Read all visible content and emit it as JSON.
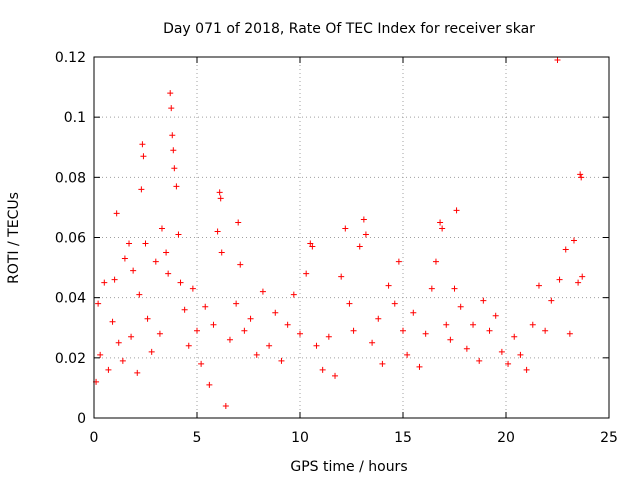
{
  "chart_data": {
    "type": "scatter",
    "title": "Day 071 of 2018, Rate Of TEC Index for receiver skar",
    "xlabel": "GPS time / hours",
    "ylabel": "ROTI / TECUs",
    "xlim": [
      0,
      25
    ],
    "ylim": [
      0,
      0.12
    ],
    "xticks": [
      0,
      5,
      10,
      15,
      20,
      25
    ],
    "xtick_labels": [
      "0",
      "5",
      "10",
      "15",
      "20",
      "25"
    ],
    "yticks": [
      0,
      0.02,
      0.04,
      0.06,
      0.08,
      0.1,
      0.12
    ],
    "ytick_labels": [
      "0",
      "0.02",
      "0.04",
      "0.06",
      "0.08",
      "0.1",
      "0.12"
    ],
    "grid": true,
    "marker": "plus",
    "series": [
      {
        "name": "ROTI",
        "color": "#ff0000",
        "points": [
          [
            0.1,
            0.012
          ],
          [
            0.2,
            0.038
          ],
          [
            0.3,
            0.021
          ],
          [
            0.5,
            0.045
          ],
          [
            0.7,
            0.016
          ],
          [
            0.9,
            0.032
          ],
          [
            1.0,
            0.046
          ],
          [
            1.1,
            0.068
          ],
          [
            1.2,
            0.025
          ],
          [
            1.4,
            0.019
          ],
          [
            1.5,
            0.053
          ],
          [
            1.7,
            0.058
          ],
          [
            1.8,
            0.027
          ],
          [
            1.9,
            0.049
          ],
          [
            2.1,
            0.015
          ],
          [
            2.2,
            0.041
          ],
          [
            2.3,
            0.076
          ],
          [
            2.35,
            0.091
          ],
          [
            2.4,
            0.087
          ],
          [
            2.5,
            0.058
          ],
          [
            2.6,
            0.033
          ],
          [
            2.8,
            0.022
          ],
          [
            3.0,
            0.052
          ],
          [
            3.2,
            0.028
          ],
          [
            3.3,
            0.063
          ],
          [
            3.5,
            0.055
          ],
          [
            3.6,
            0.048
          ],
          [
            3.7,
            0.108
          ],
          [
            3.75,
            0.103
          ],
          [
            3.8,
            0.094
          ],
          [
            3.85,
            0.089
          ],
          [
            3.9,
            0.083
          ],
          [
            4.0,
            0.077
          ],
          [
            4.1,
            0.061
          ],
          [
            4.2,
            0.045
          ],
          [
            4.4,
            0.036
          ],
          [
            4.6,
            0.024
          ],
          [
            4.8,
            0.043
          ],
          [
            5.0,
            0.029
          ],
          [
            5.2,
            0.018
          ],
          [
            5.4,
            0.037
          ],
          [
            5.6,
            0.011
          ],
          [
            5.8,
            0.031
          ],
          [
            6.0,
            0.062
          ],
          [
            6.1,
            0.075
          ],
          [
            6.15,
            0.073
          ],
          [
            6.2,
            0.055
          ],
          [
            6.4,
            0.004
          ],
          [
            6.6,
            0.026
          ],
          [
            6.9,
            0.038
          ],
          [
            7.0,
            0.065
          ],
          [
            7.1,
            0.051
          ],
          [
            7.3,
            0.029
          ],
          [
            7.6,
            0.033
          ],
          [
            7.9,
            0.021
          ],
          [
            8.2,
            0.042
          ],
          [
            8.5,
            0.024
          ],
          [
            8.8,
            0.035
          ],
          [
            9.1,
            0.019
          ],
          [
            9.4,
            0.031
          ],
          [
            9.7,
            0.041
          ],
          [
            10.0,
            0.028
          ],
          [
            10.3,
            0.048
          ],
          [
            10.5,
            0.058
          ],
          [
            10.6,
            0.057
          ],
          [
            10.8,
            0.024
          ],
          [
            11.1,
            0.016
          ],
          [
            11.4,
            0.027
          ],
          [
            11.7,
            0.014
          ],
          [
            12.0,
            0.047
          ],
          [
            12.2,
            0.063
          ],
          [
            12.4,
            0.038
          ],
          [
            12.6,
            0.029
          ],
          [
            12.9,
            0.057
          ],
          [
            13.1,
            0.066
          ],
          [
            13.2,
            0.061
          ],
          [
            13.5,
            0.025
          ],
          [
            13.8,
            0.033
          ],
          [
            14.0,
            0.018
          ],
          [
            14.3,
            0.044
          ],
          [
            14.6,
            0.038
          ],
          [
            14.8,
            0.052
          ],
          [
            15.0,
            0.029
          ],
          [
            15.2,
            0.021
          ],
          [
            15.5,
            0.035
          ],
          [
            15.8,
            0.017
          ],
          [
            16.1,
            0.028
          ],
          [
            16.4,
            0.043
          ],
          [
            16.6,
            0.052
          ],
          [
            16.8,
            0.065
          ],
          [
            16.9,
            0.063
          ],
          [
            17.1,
            0.031
          ],
          [
            17.3,
            0.026
          ],
          [
            17.5,
            0.043
          ],
          [
            17.6,
            0.069
          ],
          [
            17.8,
            0.037
          ],
          [
            18.1,
            0.023
          ],
          [
            18.4,
            0.031
          ],
          [
            18.7,
            0.019
          ],
          [
            18.9,
            0.039
          ],
          [
            19.2,
            0.029
          ],
          [
            19.5,
            0.034
          ],
          [
            19.8,
            0.022
          ],
          [
            20.1,
            0.018
          ],
          [
            20.4,
            0.027
          ],
          [
            20.7,
            0.021
          ],
          [
            21.0,
            0.016
          ],
          [
            21.3,
            0.031
          ],
          [
            21.6,
            0.044
          ],
          [
            21.9,
            0.029
          ],
          [
            22.2,
            0.039
          ],
          [
            22.5,
            0.119
          ],
          [
            22.6,
            0.046
          ],
          [
            22.9,
            0.056
          ],
          [
            23.1,
            0.028
          ],
          [
            23.3,
            0.059
          ],
          [
            23.5,
            0.045
          ],
          [
            23.6,
            0.081
          ],
          [
            23.65,
            0.08
          ],
          [
            23.7,
            0.047
          ]
        ]
      }
    ]
  }
}
